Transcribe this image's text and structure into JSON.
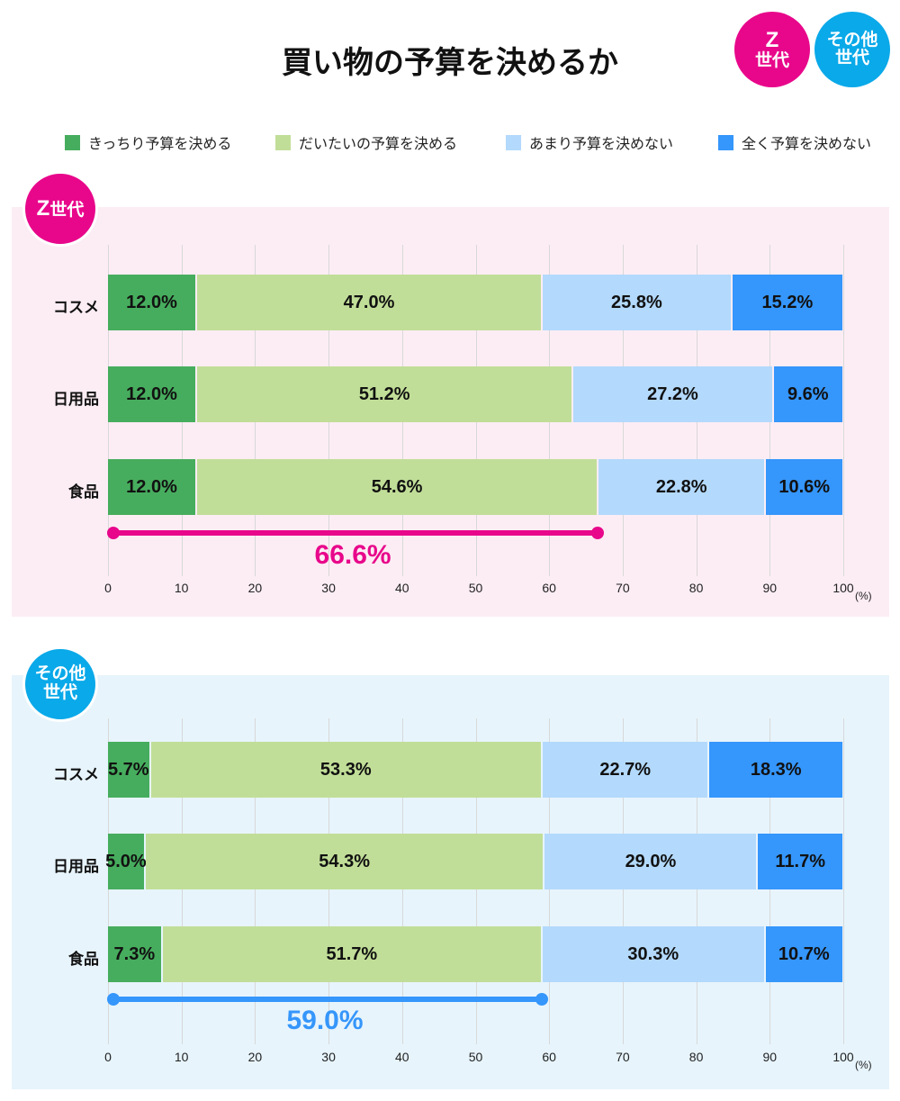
{
  "title": "買い物の予算を決めるか",
  "badges": [
    {
      "line1": "Z",
      "line2": "世代",
      "color": "#e8078b"
    },
    {
      "line1": "その他",
      "line2": "世代",
      "color": "#0aa9e9"
    }
  ],
  "legend": [
    {
      "label": "きっちり予算を決める",
      "color": "#47ad5e"
    },
    {
      "label": "だいたいの予算を決める",
      "color": "#c1de98"
    },
    {
      "label": "あまり予算を決めない",
      "color": "#b3d9fc"
    },
    {
      "label": "全く予算を決めない",
      "color": "#3596fb"
    }
  ],
  "chart_data": [
    {
      "type": "bar",
      "stacked": true,
      "orientation": "horizontal",
      "group": "Z世代",
      "categories": [
        "コスメ",
        "日用品",
        "食品"
      ],
      "series": [
        {
          "name": "きっちり予算を決める",
          "values": [
            12.0,
            12.0,
            12.0
          ]
        },
        {
          "name": "だいたいの予算を決める",
          "values": [
            47.0,
            51.2,
            54.6
          ]
        },
        {
          "name": "あまり予算を決めない",
          "values": [
            25.8,
            27.2,
            22.8
          ]
        },
        {
          "name": "全く予算を決めない",
          "values": [
            15.2,
            9.6,
            10.6
          ]
        }
      ],
      "xlim": [
        0,
        100
      ],
      "xticks": [
        0,
        10,
        20,
        30,
        40,
        50,
        60,
        70,
        80,
        90,
        100
      ],
      "xunit": "(%)",
      "bracket": {
        "from": 0,
        "to": 66.6,
        "label": "66.6%",
        "color": "#e8078b"
      },
      "background": "#fcedf4"
    },
    {
      "type": "bar",
      "stacked": true,
      "orientation": "horizontal",
      "group": "その他世代",
      "categories": [
        "コスメ",
        "日用品",
        "食品"
      ],
      "series": [
        {
          "name": "きっちり予算を決める",
          "values": [
            5.7,
            5.0,
            7.3
          ]
        },
        {
          "name": "だいたいの予算を決める",
          "values": [
            53.3,
            54.3,
            51.7
          ]
        },
        {
          "name": "あまり予算を決めない",
          "values": [
            22.7,
            29.0,
            30.3
          ]
        },
        {
          "name": "全く予算を決めない",
          "values": [
            18.3,
            11.7,
            10.7
          ]
        }
      ],
      "xlim": [
        0,
        100
      ],
      "xticks": [
        0,
        10,
        20,
        30,
        40,
        50,
        60,
        70,
        80,
        90,
        100
      ],
      "xunit": "(%)",
      "bracket": {
        "from": 0,
        "to": 59.0,
        "label": "59.0%",
        "color": "#3596fb"
      },
      "background": "#e7f4fc"
    }
  ]
}
